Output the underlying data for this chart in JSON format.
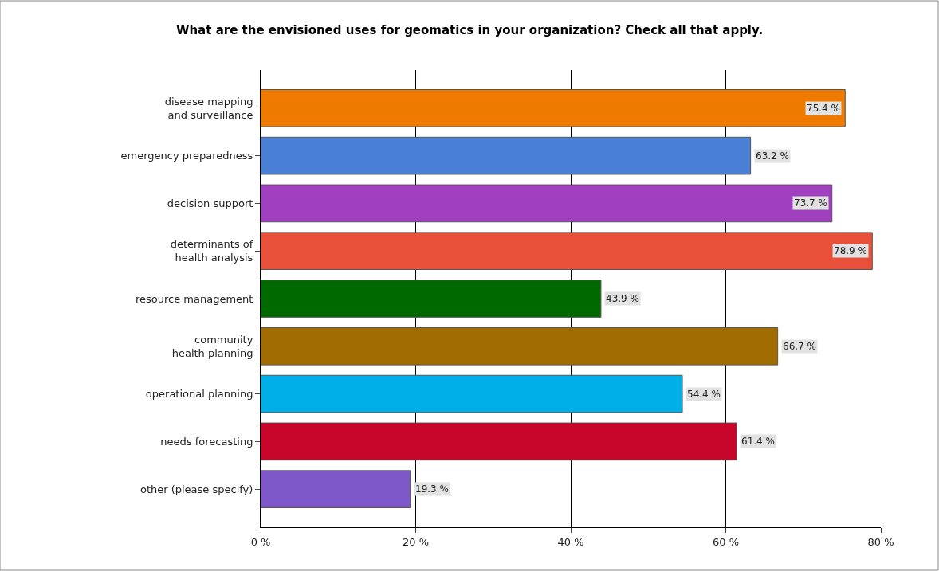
{
  "chart_data": {
    "type": "bar",
    "orientation": "horizontal",
    "title": "What are the envisioned uses for geomatics in your organization? Check all that apply.",
    "categories": [
      "disease mapping\nand surveillance",
      "emergency preparedness",
      "decision support",
      "determinants of\nhealth analysis",
      "resource management",
      "community\nhealth planning",
      "operational planning",
      "needs forecasting",
      "other (please specify)"
    ],
    "values": [
      75.4,
      63.2,
      73.7,
      78.9,
      43.9,
      66.7,
      54.4,
      61.4,
      19.3
    ],
    "value_labels": [
      "75.4 %",
      "63.2 %",
      "73.7 %",
      "78.9 %",
      "43.9 %",
      "66.7 %",
      "54.4 %",
      "61.4 %",
      "19.3 %"
    ],
    "colors": [
      "#ee7a00",
      "#4a7fd6",
      "#a040bf",
      "#e8503a",
      "#006a00",
      "#a26d00",
      "#00aee8",
      "#c8062c",
      "#7e57c8"
    ],
    "xlim": [
      0,
      80
    ],
    "xticks": [
      {
        "value": 0,
        "label": "0 %"
      },
      {
        "value": 20,
        "label": "20 %"
      },
      {
        "value": 40,
        "label": "40 %"
      },
      {
        "value": 60,
        "label": "60 %"
      },
      {
        "value": 80,
        "label": "80 %"
      }
    ],
    "grid": "x"
  }
}
